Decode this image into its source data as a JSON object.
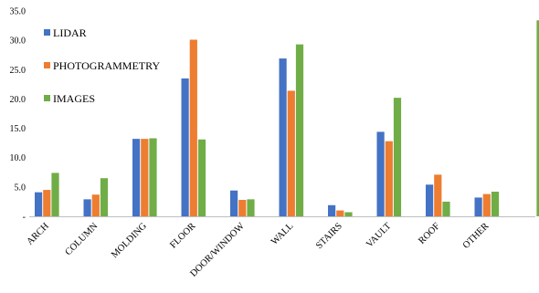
{
  "chart_data": {
    "type": "bar",
    "title": "",
    "xlabel": "",
    "ylabel": "",
    "categories": [
      "ARCH",
      "COLUMN",
      "MOLDING",
      "FLOOR",
      "DOOR/WINDOW",
      "WALL",
      "STAIRS",
      "VAULT",
      "ROOF",
      "OTHER"
    ],
    "series": [
      {
        "name": "LIDAR",
        "color": "#4472c4",
        "values": [
          4.1,
          2.9,
          13.2,
          23.5,
          4.4,
          26.9,
          1.9,
          14.4,
          5.4,
          3.2
        ]
      },
      {
        "name": "PHOTOGRAMMETRY",
        "color": "#ed7d31",
        "values": [
          4.5,
          3.7,
          13.2,
          30.1,
          2.8,
          21.4,
          1.0,
          12.8,
          7.1,
          3.8
        ]
      },
      {
        "name": "IMAGES",
        "color": "#70ad47",
        "values": [
          7.4,
          6.5,
          13.3,
          13.1,
          2.9,
          29.3,
          0.7,
          20.2,
          2.5,
          4.2
        ]
      }
    ],
    "extra_bar": {
      "series": "IMAGES",
      "value": 33.4
    },
    "ylim": [
      0,
      35
    ],
    "yticks": [
      {
        "value": 0,
        "label": "-"
      },
      {
        "value": 5,
        "label": "5.0"
      },
      {
        "value": 10,
        "label": "10.0"
      },
      {
        "value": 15,
        "label": "15.0"
      },
      {
        "value": 20,
        "label": "20.0"
      },
      {
        "value": 25,
        "label": "25.0"
      },
      {
        "value": 30,
        "label": "30.0"
      },
      {
        "value": 35,
        "label": "35.0"
      }
    ],
    "grid": false,
    "legend_position": "top-left"
  }
}
